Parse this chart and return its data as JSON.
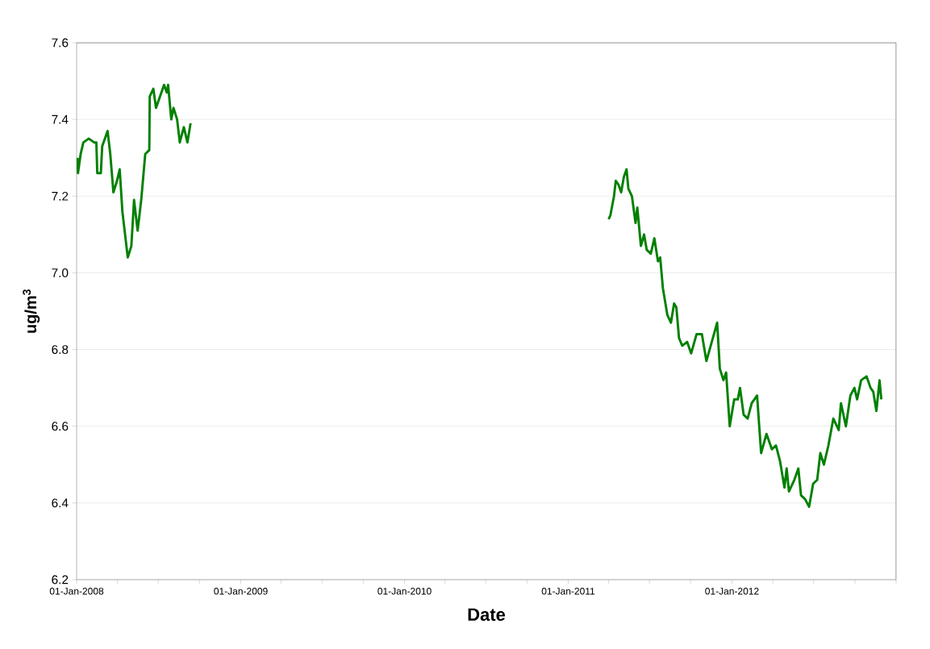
{
  "chart_data": {
    "type": "line",
    "xlabel": "Date",
    "ylabel": "ug/m$^{3}$",
    "x": [
      "2008-01-03",
      "2008-01-04",
      "2008-01-10",
      "2008-01-16",
      "2008-01-28",
      "2008-02-09",
      "2008-02-14",
      "2008-02-16",
      "2008-02-24",
      "2008-02-27",
      "2008-03-10",
      "2008-03-16",
      "2008-03-23",
      "2008-03-31",
      "2008-04-06",
      "2008-04-12",
      "2008-04-16",
      "2008-04-24",
      "2008-05-02",
      "2008-05-08",
      "2008-05-16",
      "2008-05-24",
      "2008-06-02",
      "2008-06-11",
      "2008-06-12",
      "2008-06-20",
      "2008-06-26",
      "2008-07-02",
      "2008-07-14",
      "2008-07-20",
      "2008-07-23",
      "2008-07-30",
      "2008-08-04",
      "2008-08-12",
      "2008-08-18",
      "2008-08-27",
      "2008-09-04",
      "2008-09-11",
      "2010-01-01",
      "2011-04-01",
      "2011-04-05",
      "2011-04-13",
      "2011-04-17",
      "2011-04-23",
      "2011-04-29",
      "2011-05-05",
      "2011-05-11",
      "2011-05-15",
      "2011-05-23",
      "2011-05-31",
      "2011-06-04",
      "2011-06-12",
      "2011-06-19",
      "2011-06-25",
      "2011-07-04",
      "2011-07-12",
      "2011-07-20",
      "2011-07-25",
      "2011-07-31",
      "2011-08-10",
      "2011-08-18",
      "2011-08-25",
      "2011-08-30",
      "2011-09-05",
      "2011-09-12",
      "2011-09-23",
      "2011-10-02",
      "2011-10-14",
      "2011-10-26",
      "2011-11-05",
      "2011-11-17",
      "2011-11-29",
      "2011-12-05",
      "2011-12-13",
      "2011-12-19",
      "2011-12-27",
      "2012-01-06",
      "2012-01-14",
      "2012-01-19",
      "2012-01-27",
      "2012-02-05",
      "2012-02-14",
      "2012-02-26",
      "2012-03-06",
      "2012-03-18",
      "2012-03-30",
      "2012-04-08",
      "2012-04-17",
      "2012-04-27",
      "2012-05-02",
      "2012-05-07",
      "2012-05-19",
      "2012-05-28",
      "2012-06-03",
      "2012-06-12",
      "2012-06-21",
      "2012-06-30",
      "2012-07-09",
      "2012-07-16",
      "2012-07-24",
      "2012-08-03",
      "2012-08-14",
      "2012-08-26",
      "2012-08-31",
      "2012-09-11",
      "2012-09-21",
      "2012-09-30",
      "2012-10-06",
      "2012-10-15",
      "2012-10-27",
      "2012-11-05",
      "2012-11-11",
      "2012-11-18",
      "2012-11-25",
      "2012-11-29"
    ],
    "series": [
      {
        "color": "#008000",
        "values": [
          7.3,
          7.26,
          7.31,
          7.34,
          7.35,
          7.34,
          7.34,
          7.26,
          7.26,
          7.33,
          7.37,
          7.31,
          7.21,
          7.24,
          7.27,
          7.16,
          7.12,
          7.04,
          7.07,
          7.19,
          7.11,
          7.19,
          7.31,
          7.32,
          7.46,
          7.48,
          7.43,
          7.45,
          7.49,
          7.47,
          7.49,
          7.4,
          7.43,
          7.4,
          7.34,
          7.38,
          7.34,
          7.39,
          null,
          7.14,
          7.15,
          7.2,
          7.24,
          7.23,
          7.21,
          7.25,
          7.27,
          7.22,
          7.2,
          7.13,
          7.17,
          7.07,
          7.1,
          7.06,
          7.05,
          7.09,
          7.03,
          7.04,
          6.96,
          6.89,
          6.87,
          6.92,
          6.91,
          6.83,
          6.81,
          6.82,
          6.79,
          6.84,
          6.84,
          6.77,
          6.82,
          6.87,
          6.75,
          6.72,
          6.74,
          6.6,
          6.67,
          6.67,
          6.7,
          6.63,
          6.62,
          6.66,
          6.68,
          6.53,
          6.58,
          6.54,
          6.55,
          6.51,
          6.44,
          6.49,
          6.43,
          6.46,
          6.49,
          6.42,
          6.41,
          6.39,
          6.45,
          6.46,
          6.53,
          6.5,
          6.55,
          6.62,
          6.59,
          6.66,
          6.6,
          6.68,
          6.7,
          6.67,
          6.72,
          6.73,
          6.7,
          6.69,
          6.64,
          6.72,
          6.67
        ]
      }
    ],
    "xlim": [
      "2008-01-01",
      "2013-01-01"
    ],
    "ylim": [
      6.2,
      7.6
    ],
    "xticks": [
      {
        "value": "2008-01-01",
        "label": "01-Jan-2008"
      },
      {
        "value": "2008-04-01",
        "label": null
      },
      {
        "value": "2008-07-01",
        "label": null
      },
      {
        "value": "2008-10-01",
        "label": null
      },
      {
        "value": "2009-01-01",
        "label": "01-Jan-2009"
      },
      {
        "value": "2009-04-01",
        "label": null
      },
      {
        "value": "2009-07-01",
        "label": null
      },
      {
        "value": "2009-10-01",
        "label": null
      },
      {
        "value": "2010-01-01",
        "label": "01-Jan-2010"
      },
      {
        "value": "2010-04-01",
        "label": null
      },
      {
        "value": "2010-07-01",
        "label": null
      },
      {
        "value": "2010-10-01",
        "label": null
      },
      {
        "value": "2011-01-01",
        "label": "01-Jan-2011"
      },
      {
        "value": "2011-04-01",
        "label": null
      },
      {
        "value": "2011-07-01",
        "label": null
      },
      {
        "value": "2011-10-01",
        "label": null
      },
      {
        "value": "2012-01-01",
        "label": "01-Jan-2012"
      },
      {
        "value": "2012-04-01",
        "label": null
      },
      {
        "value": "2012-07-01",
        "label": null
      },
      {
        "value": "2012-10-01",
        "label": null
      },
      {
        "value": "2013-01-01",
        "label": null
      }
    ],
    "yticks": [
      {
        "value": 6.2,
        "label": "6.2"
      },
      {
        "value": 6.4,
        "label": "6.4"
      },
      {
        "value": 6.6,
        "label": "6.6"
      },
      {
        "value": 6.8,
        "label": "6.8"
      },
      {
        "value": 7.0,
        "label": "7.0"
      },
      {
        "value": 7.2,
        "label": "7.2"
      },
      {
        "value": 7.4,
        "label": "7.4"
      },
      {
        "value": 7.6,
        "label": "7.6"
      }
    ],
    "grid": "y",
    "marker": "none",
    "line_style": "solid"
  }
}
